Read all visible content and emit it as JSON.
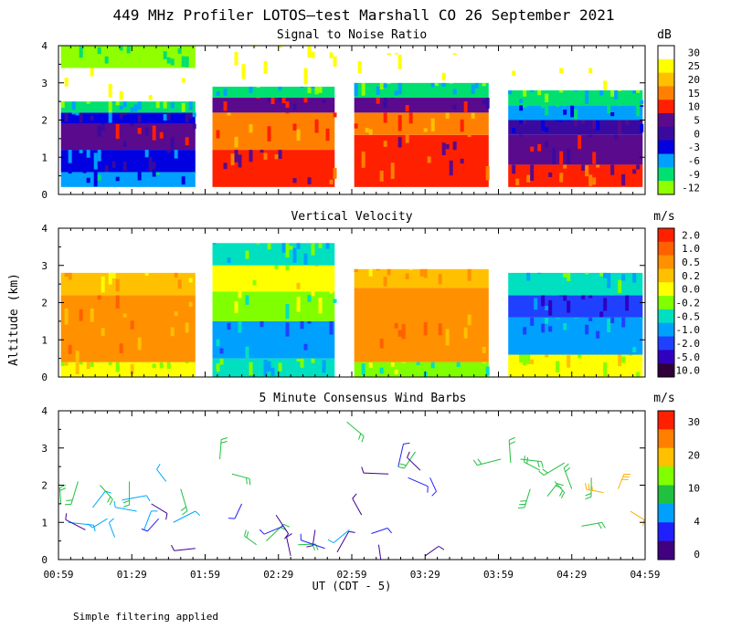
{
  "title": "449 MHz Profiler LOTOS—test Marshall CO 26 September 2021",
  "ylabel": "Altitude (km)",
  "xlabel": "UT  (CDT - 5)",
  "footer": "Simple filtering applied",
  "x_ticks": [
    "00:59",
    "01:29",
    "01:59",
    "02:29",
    "02:59",
    "03:29",
    "03:59",
    "04:29",
    "04:59"
  ],
  "chart_data": [
    {
      "type": "heatmap",
      "title": "Signal to Noise Ratio",
      "xlabel": "UT  (CDT - 5)",
      "ylabel": "Altitude (km)",
      "xlim": [
        "00:59",
        "04:59"
      ],
      "ylim": [
        0,
        4
      ],
      "y_ticks": [
        "0",
        "1",
        "2",
        "3",
        "4"
      ],
      "colorbar": {
        "unit": "dB",
        "labels": [
          "30",
          "25",
          "20",
          "15",
          "10",
          "5",
          "0",
          "-3",
          "-6",
          "-9",
          "-12"
        ],
        "colors": [
          "#ffffff",
          "#ffff00",
          "#ffc000",
          "#ff8000",
          "#ff2000",
          "#5a0a8c",
          "#3a0aa0",
          "#0000e0",
          "#00a0ff",
          "#00e070",
          "#90ff00"
        ]
      },
      "data_blocks": [
        {
          "start": "01:00",
          "end": "01:55",
          "layers": [
            {
              "from": 0.2,
              "to": 0.6,
              "value": -6
            },
            {
              "from": 0.6,
              "to": 1.2,
              "value": -3
            },
            {
              "from": 1.2,
              "to": 1.9,
              "value": 5
            },
            {
              "from": 1.9,
              "to": 2.2,
              "value": -3
            },
            {
              "from": 2.2,
              "to": 2.5,
              "value": -9
            },
            {
              "from": 2.5,
              "to": 3.4,
              "value": 30
            },
            {
              "from": 3.4,
              "to": 4.0,
              "value": -12
            }
          ]
        },
        {
          "start": "02:02",
          "end": "02:52",
          "layers": [
            {
              "from": 0.2,
              "to": 1.2,
              "value": 10
            },
            {
              "from": 1.2,
              "to": 2.2,
              "value": 15
            },
            {
              "from": 2.2,
              "to": 2.6,
              "value": 5
            },
            {
              "from": 2.6,
              "to": 2.9,
              "value": -9
            },
            {
              "from": 2.9,
              "to": 4.0,
              "value": 30
            }
          ]
        },
        {
          "start": "03:00",
          "end": "03:55",
          "layers": [
            {
              "from": 0.2,
              "to": 1.6,
              "value": 10
            },
            {
              "from": 1.6,
              "to": 2.2,
              "value": 15
            },
            {
              "from": 2.2,
              "to": 2.6,
              "value": 5
            },
            {
              "from": 2.6,
              "to": 3.0,
              "value": -9
            },
            {
              "from": 3.0,
              "to": 3.8,
              "value": 30
            }
          ]
        },
        {
          "start": "04:03",
          "end": "04:58",
          "layers": [
            {
              "from": 0.2,
              "to": 0.8,
              "value": 10
            },
            {
              "from": 0.8,
              "to": 1.6,
              "value": 5
            },
            {
              "from": 1.6,
              "to": 2.0,
              "value": 0
            },
            {
              "from": 2.0,
              "to": 2.4,
              "value": -6
            },
            {
              "from": 2.4,
              "to": 2.8,
              "value": -9
            },
            {
              "from": 2.8,
              "to": 3.4,
              "value": 30
            }
          ]
        }
      ]
    },
    {
      "type": "heatmap",
      "title": "Vertical Velocity",
      "xlabel": "UT  (CDT - 5)",
      "ylabel": "Altitude (km)",
      "xlim": [
        "00:59",
        "04:59"
      ],
      "ylim": [
        0,
        4
      ],
      "y_ticks": [
        "0",
        "1",
        "2",
        "3",
        "4"
      ],
      "colorbar": {
        "unit": "m/s",
        "labels": [
          "2.0",
          "1.0",
          "0.5",
          "0.2",
          "0.0",
          "-0.2",
          "-0.5",
          "-1.0",
          "-2.0",
          "-5.0",
          "-10.0"
        ],
        "colors": [
          "#ff2000",
          "#ff6000",
          "#ff9000",
          "#ffc000",
          "#ffff00",
          "#80ff00",
          "#00e0c0",
          "#00a0ff",
          "#2040ff",
          "#3000c0",
          "#30003a"
        ]
      },
      "data_blocks": [
        {
          "start": "01:00",
          "end": "01:55",
          "layers": [
            {
              "from": 0.0,
              "to": 0.4,
              "value": 0.0
            },
            {
              "from": 0.4,
              "to": 2.2,
              "value": 0.5
            },
            {
              "from": 2.2,
              "to": 2.8,
              "value": 0.2
            }
          ]
        },
        {
          "start": "02:02",
          "end": "02:52",
          "layers": [
            {
              "from": 0.0,
              "to": 0.5,
              "value": -0.5
            },
            {
              "from": 0.5,
              "to": 1.5,
              "value": -1.0
            },
            {
              "from": 1.5,
              "to": 2.3,
              "value": -0.2
            },
            {
              "from": 2.3,
              "to": 3.0,
              "value": 0.0
            },
            {
              "from": 3.0,
              "to": 3.6,
              "value": -0.5
            }
          ]
        },
        {
          "start": "03:00",
          "end": "03:55",
          "layers": [
            {
              "from": 0.0,
              "to": 0.4,
              "value": -0.2
            },
            {
              "from": 0.4,
              "to": 2.4,
              "value": 0.5
            },
            {
              "from": 2.4,
              "to": 2.9,
              "value": 0.2
            }
          ]
        },
        {
          "start": "04:03",
          "end": "04:58",
          "layers": [
            {
              "from": 0.0,
              "to": 0.6,
              "value": 0.0
            },
            {
              "from": 0.6,
              "to": 1.6,
              "value": -1.0
            },
            {
              "from": 1.6,
              "to": 2.2,
              "value": -2.0
            },
            {
              "from": 2.2,
              "to": 2.8,
              "value": -0.5
            }
          ]
        }
      ]
    },
    {
      "type": "scatter",
      "title": "5 Minute Consensus Wind Barbs",
      "xlabel": "UT  (CDT - 5)",
      "ylabel": "Altitude (km)",
      "xlim": [
        "00:59",
        "04:59"
      ],
      "ylim": [
        0,
        4
      ],
      "y_ticks": [
        "0",
        "1",
        "2",
        "3",
        "4"
      ],
      "colorbar": {
        "unit": "m/s",
        "labels": [
          "30",
          "20",
          "10",
          "4",
          "0"
        ],
        "colors": [
          "#ff2000",
          "#ff8000",
          "#ffc000",
          "#80ff00",
          "#20c040",
          "#00a0ff",
          "#2020ff",
          "#400080"
        ]
      },
      "barbs": [
        {
          "t": "01:00",
          "alt": 1.5,
          "speed": 12
        },
        {
          "t": "01:03",
          "alt": 1.0,
          "speed": 6
        },
        {
          "t": "01:07",
          "alt": 2.1,
          "speed": 11
        },
        {
          "t": "01:10",
          "alt": 0.8,
          "speed": 2
        },
        {
          "t": "01:13",
          "alt": 1.4,
          "speed": 6
        },
        {
          "t": "01:16",
          "alt": 2.0,
          "speed": 11
        },
        {
          "t": "01:19",
          "alt": 1.1,
          "speed": 6
        },
        {
          "t": "01:22",
          "alt": 0.6,
          "speed": 6
        },
        {
          "t": "01:25",
          "alt": 1.6,
          "speed": 6
        },
        {
          "t": "01:28",
          "alt": 2.1,
          "speed": 11
        },
        {
          "t": "01:31",
          "alt": 1.3,
          "speed": 5
        },
        {
          "t": "01:34",
          "alt": 0.8,
          "speed": 6
        },
        {
          "t": "01:37",
          "alt": 1.5,
          "speed": 2
        },
        {
          "t": "01:40",
          "alt": 1.1,
          "speed": 3
        },
        {
          "t": "01:43",
          "alt": 2.1,
          "speed": 5
        },
        {
          "t": "01:46",
          "alt": 1.0,
          "speed": 6
        },
        {
          "t": "01:49",
          "alt": 1.9,
          "speed": 11
        },
        {
          "t": "01:55",
          "alt": 0.3,
          "speed": 2
        },
        {
          "t": "02:05",
          "alt": 2.7,
          "speed": 11
        },
        {
          "t": "02:10",
          "alt": 2.3,
          "speed": 12
        },
        {
          "t": "02:14",
          "alt": 1.5,
          "speed": 3
        },
        {
          "t": "02:20",
          "alt": 0.4,
          "speed": 12
        },
        {
          "t": "02:24",
          "alt": 0.5,
          "speed": 11
        },
        {
          "t": "02:28",
          "alt": 1.2,
          "speed": 2
        },
        {
          "t": "02:31",
          "alt": 0.9,
          "speed": 3
        },
        {
          "t": "02:34",
          "alt": 0.1,
          "speed": 2
        },
        {
          "t": "02:37",
          "alt": 0.4,
          "speed": 12
        },
        {
          "t": "02:44",
          "alt": 0.8,
          "speed": 2
        },
        {
          "t": "02:48",
          "alt": 0.3,
          "speed": 3
        },
        {
          "t": "02:53",
          "alt": 0.2,
          "speed": 2
        },
        {
          "t": "02:57",
          "alt": 3.7,
          "speed": 12
        },
        {
          "t": "02:58",
          "alt": 0.8,
          "speed": 6
        },
        {
          "t": "03:03",
          "alt": 1.2,
          "speed": 2
        },
        {
          "t": "03:07",
          "alt": 0.7,
          "speed": 3
        },
        {
          "t": "03:10",
          "alt": 0.4,
          "speed": 2
        },
        {
          "t": "03:14",
          "alt": 2.3,
          "speed": 2
        },
        {
          "t": "03:18",
          "alt": 2.5,
          "speed": 3
        },
        {
          "t": "03:22",
          "alt": 2.2,
          "speed": 3
        },
        {
          "t": "03:25",
          "alt": 2.9,
          "speed": 12
        },
        {
          "t": "03:27",
          "alt": 2.4,
          "speed": 2
        },
        {
          "t": "03:29",
          "alt": 0.1,
          "speed": 2
        },
        {
          "t": "03:31",
          "alt": 2.2,
          "speed": 3
        },
        {
          "t": "04:00",
          "alt": 2.7,
          "speed": 11
        },
        {
          "t": "04:04",
          "alt": 2.6,
          "speed": 11
        },
        {
          "t": "04:08",
          "alt": 2.7,
          "speed": 12
        },
        {
          "t": "04:12",
          "alt": 1.9,
          "speed": 15
        },
        {
          "t": "04:16",
          "alt": 2.4,
          "speed": 12
        },
        {
          "t": "04:19",
          "alt": 1.7,
          "speed": 12
        },
        {
          "t": "04:22",
          "alt": 2.1,
          "speed": 11
        },
        {
          "t": "04:26",
          "alt": 2.6,
          "speed": 11
        },
        {
          "t": "04:29",
          "alt": 1.9,
          "speed": 12
        },
        {
          "t": "04:33",
          "alt": 0.9,
          "speed": 12
        },
        {
          "t": "04:37",
          "alt": 2.2,
          "speed": 12
        },
        {
          "t": "04:42",
          "alt": 1.8,
          "speed": 20
        },
        {
          "t": "04:48",
          "alt": 1.9,
          "speed": 21
        },
        {
          "t": "04:53",
          "alt": 1.3,
          "speed": 20
        }
      ]
    }
  ]
}
